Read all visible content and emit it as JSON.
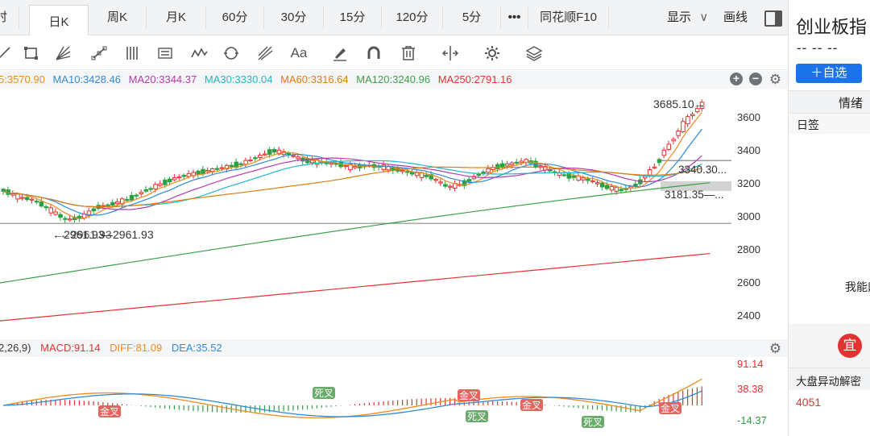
{
  "tabs": [
    {
      "label": "时",
      "active": false
    },
    {
      "label": "日K",
      "active": true
    },
    {
      "label": "周K",
      "active": false
    },
    {
      "label": "月K",
      "active": false
    },
    {
      "label": "60分",
      "active": false
    },
    {
      "label": "30分",
      "active": false
    },
    {
      "label": "15分",
      "active": false
    },
    {
      "label": "120分",
      "active": false
    },
    {
      "label": "5分",
      "active": false
    },
    {
      "label": "•••",
      "active": false
    },
    {
      "label": "同花顺F10",
      "active": false
    }
  ],
  "display_label": "显示",
  "drawline_label": "画线",
  "toolbar_icons": [
    "crosshair-icon",
    "rectangle-icon",
    "fan-icon",
    "node-line-icon",
    "bars-icon",
    "text-box-icon",
    "wave-icon",
    "cycle-icon",
    "fork-icon",
    "text-icon",
    "pen-icon",
    "magnet-icon",
    "trash-icon",
    "split-icon",
    "settings-icon",
    "layers-icon"
  ],
  "ma": [
    {
      "text": "5:3570.90",
      "color": "#f08a1c"
    },
    {
      "text": "MA10:3428.46",
      "color": "#2f8bd8"
    },
    {
      "text": "MA20:3344.37",
      "color": "#b53ab0"
    },
    {
      "text": "MA30:3330.04",
      "color": "#20b8c8"
    },
    {
      "text": "MA60:3316.64",
      "color": "#e07d10"
    },
    {
      "text": "MA120:3240.96",
      "color": "#3aa048"
    },
    {
      "text": "MA250:2791.16",
      "color": "#e23232"
    }
  ],
  "y_ticks": [
    "3600",
    "3400",
    "3200",
    "3000",
    "2800",
    "2600",
    "2400"
  ],
  "price_labels": {
    "high": "3685.10→",
    "low": "←2961.93",
    "low_overlap": "←2961.93",
    "mid1": "3340.30...",
    "mid2": "3181.35—...",
    "low_line": "—2961.93"
  },
  "macd": [
    {
      "text": "2,26,9)",
      "color": "#333"
    },
    {
      "text": "MACD:91.14",
      "color": "#e23232"
    },
    {
      "text": "DIFF:81.09",
      "color": "#f08a1c"
    },
    {
      "text": "DEA:35.52",
      "color": "#2f8bd8"
    }
  ],
  "macd_ticks": [
    "91.14",
    "38.38",
    "-14.37"
  ],
  "signals": [
    {
      "label": "金叉",
      "type": "gold"
    },
    {
      "label": "死叉",
      "type": "dead"
    },
    {
      "label": "金叉",
      "type": "gold"
    },
    {
      "label": "死叉",
      "type": "dead"
    },
    {
      "label": "金叉",
      "type": "gold"
    },
    {
      "label": "死叉",
      "type": "dead"
    },
    {
      "label": "金叉",
      "type": "gold"
    }
  ],
  "right": {
    "title": "创业板指",
    "dashes": "-- -- --",
    "add_button": "＋自选",
    "sentiment": "情绪",
    "daily_sign": "日签",
    "can_say": "我能鼎",
    "suitable": "宜",
    "market_label": "大盘异动解密",
    "market_value": "4051"
  },
  "colors": {
    "up": "#e23232",
    "down": "#2aa143",
    "accent": "#1a73e8"
  }
}
